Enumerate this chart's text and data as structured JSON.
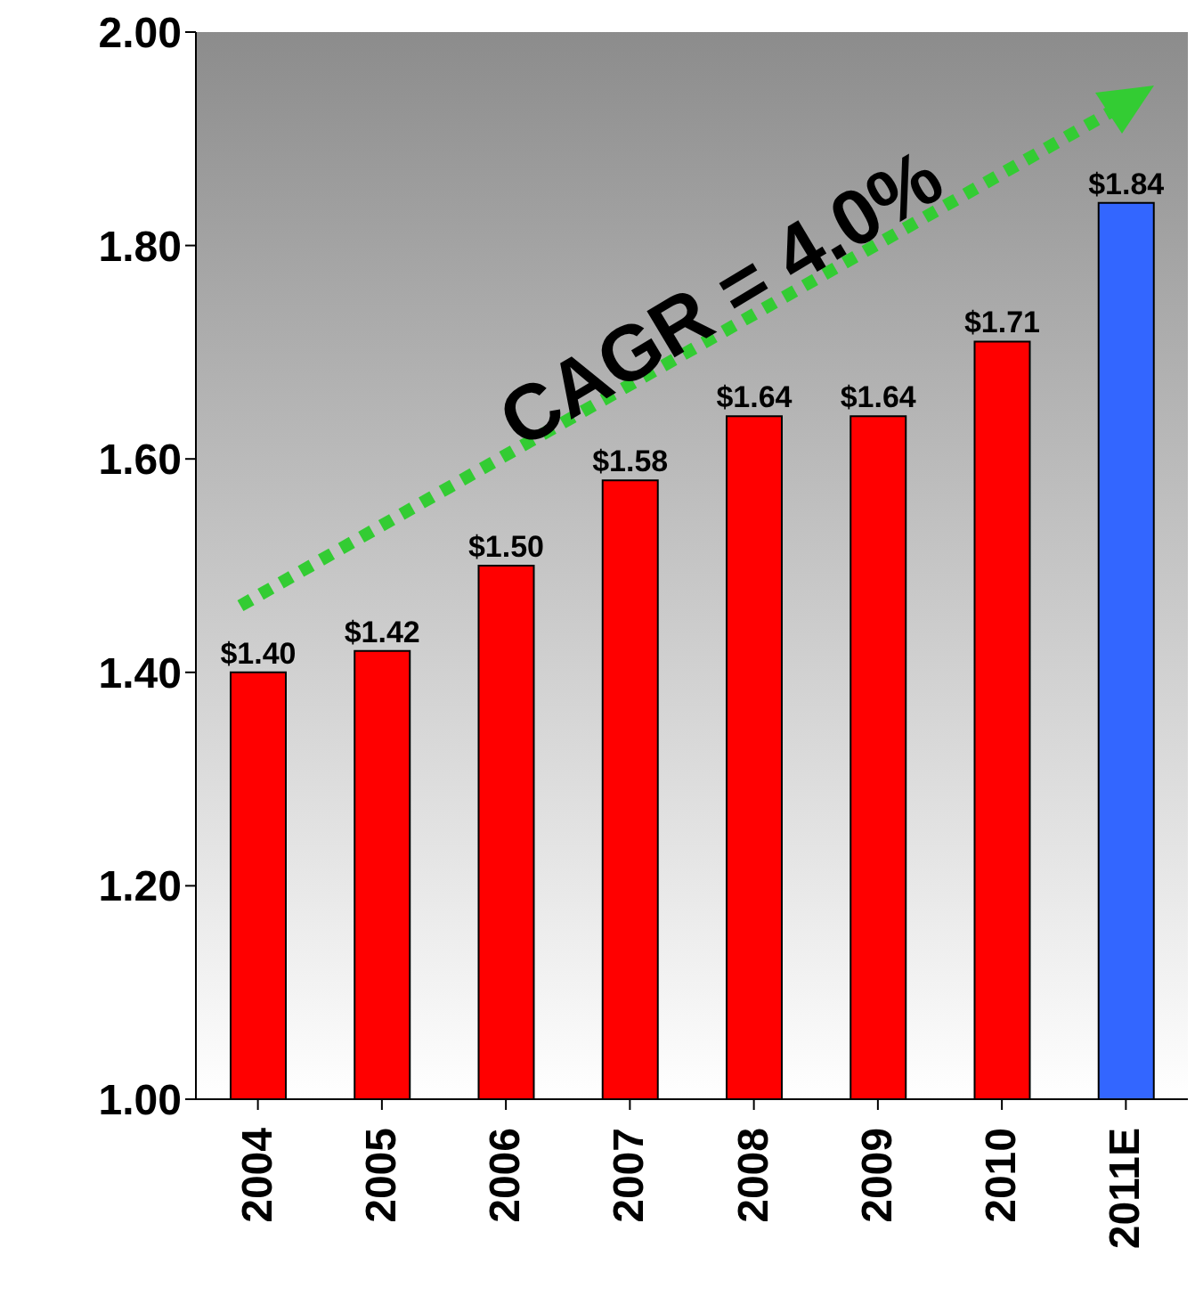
{
  "chart_data": {
    "type": "bar",
    "categories": [
      "2004",
      "2005",
      "2006",
      "2007",
      "2008",
      "2009",
      "2010",
      "2011E"
    ],
    "values": [
      1.4,
      1.42,
      1.5,
      1.58,
      1.64,
      1.64,
      1.71,
      1.84
    ],
    "colors": [
      "#ff0000",
      "#ff0000",
      "#ff0000",
      "#ff0000",
      "#ff0000",
      "#ff0000",
      "#ff0000",
      "#3366ff"
    ],
    "value_labels": [
      "$1.40",
      "$1.42",
      "$1.50",
      "$1.58",
      "$1.64",
      "$1.64",
      "$1.71",
      "$1.84"
    ],
    "ylim": [
      1,
      2
    ],
    "yticks": [
      {
        "value": 1,
        "label": "1.00"
      },
      {
        "value": 1.2,
        "label": "1.20"
      },
      {
        "value": 1.4,
        "label": "1.40"
      },
      {
        "value": 1.6,
        "label": "1.60"
      },
      {
        "value": 1.8,
        "label": "1.80"
      },
      {
        "value": 2,
        "label": "2.00"
      }
    ],
    "annotations": [
      "CAGR = 4.0%"
    ],
    "grid": false,
    "legend": false
  }
}
